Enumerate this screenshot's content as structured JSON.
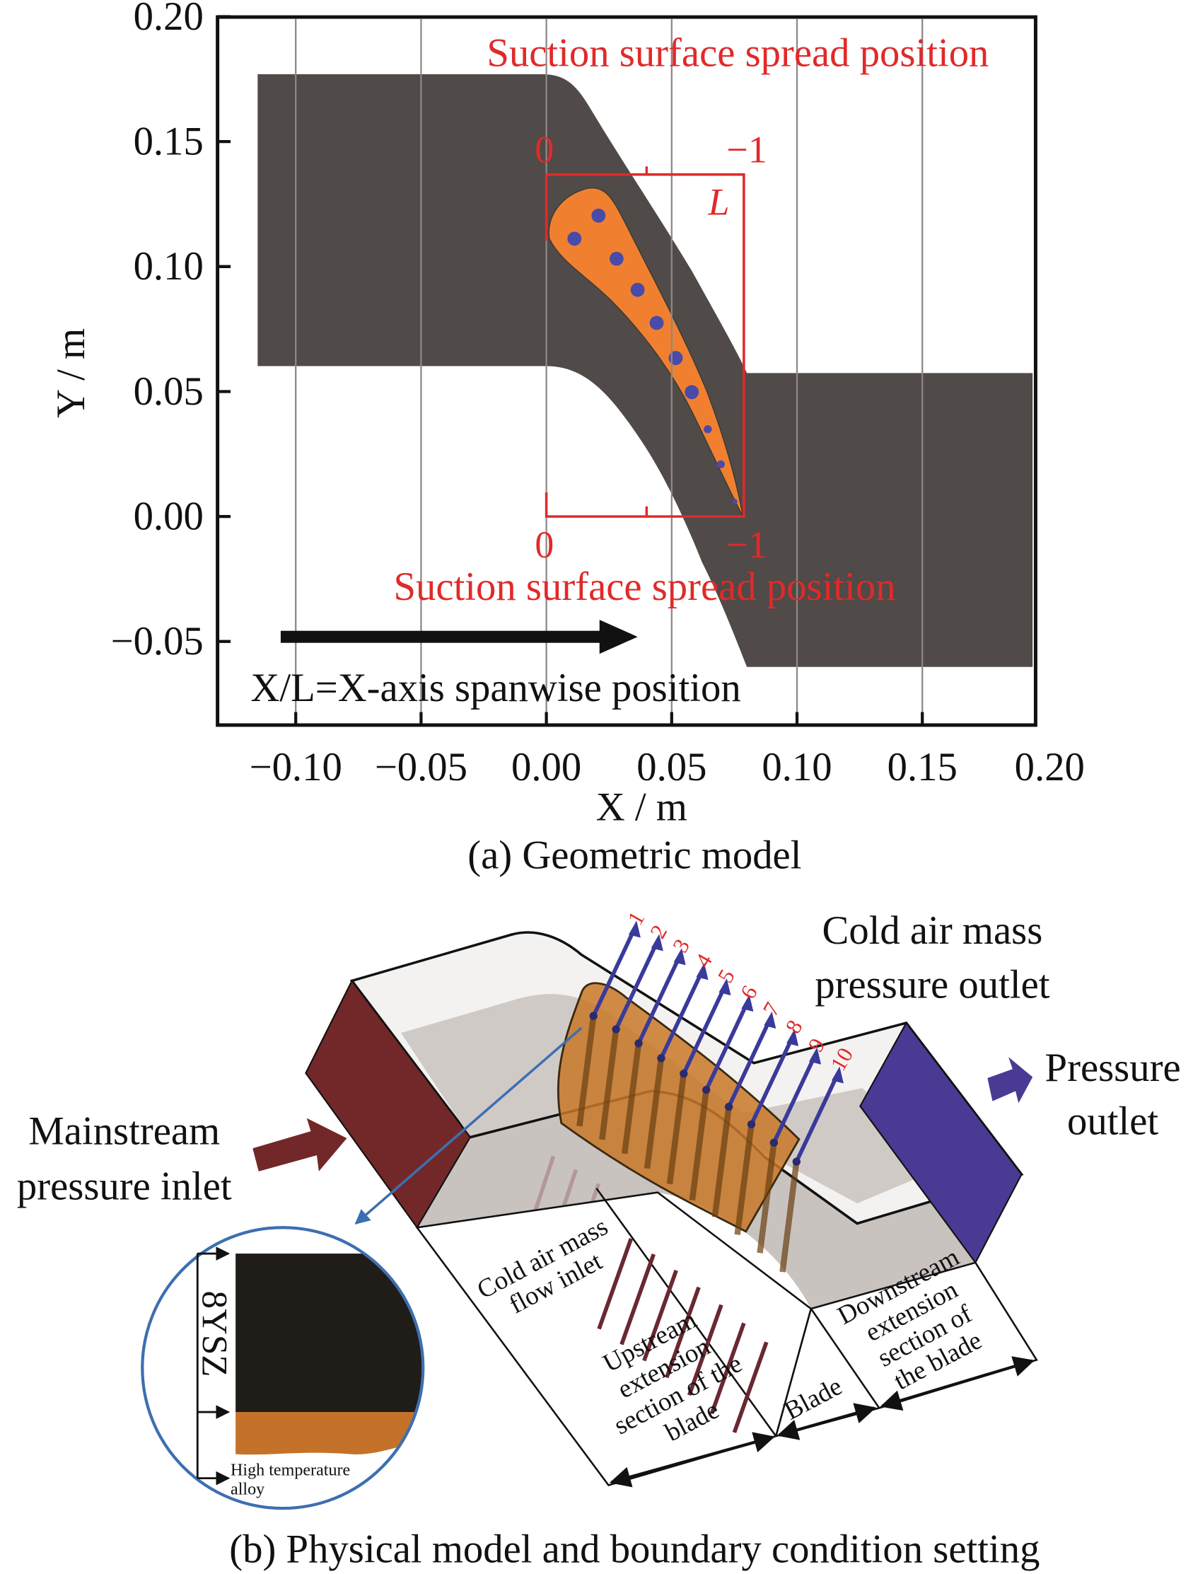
{
  "panel_a": {
    "caption": "(a) Geometric model",
    "x_axis_label": "X / m",
    "y_axis_label": "Y / m",
    "x_ticks": [
      {
        "value": -0.1,
        "label": "−0.10"
      },
      {
        "value": -0.05,
        "label": "−0.05"
      },
      {
        "value": 0.0,
        "label": "0.00"
      },
      {
        "value": 0.05,
        "label": "0.05"
      },
      {
        "value": 0.1,
        "label": "0.10"
      },
      {
        "value": 0.15,
        "label": "0.15"
      },
      {
        "value": 0.2,
        "label": "0.20"
      }
    ],
    "y_ticks": [
      {
        "value": 0.2,
        "label": "0.20"
      },
      {
        "value": 0.15,
        "label": "0.15"
      },
      {
        "value": 0.1,
        "label": "0.10"
      },
      {
        "value": 0.05,
        "label": "0.05"
      },
      {
        "value": 0.0,
        "label": "0.00"
      },
      {
        "value": -0.05,
        "label": "−0.05"
      }
    ],
    "top_annotation": "Suction surface spread position",
    "bottom_annotation": "Suction surface spread position",
    "top_scale_start": "0",
    "top_scale_end": "−1",
    "bottom_scale_start": "0",
    "bottom_scale_end": "−1",
    "length_label": "L",
    "spanwise_note": "X/L=X-axis spanwise position",
    "colors": {
      "domain": "#504a48",
      "blade": "#f08030",
      "holes": "#4a4aa8",
      "annotation": "#e02a2a"
    }
  },
  "panel_b": {
    "caption": "(b) Physical model and boundary condition setting",
    "inlet_label_1": "Mainstream",
    "inlet_label_2": "pressure inlet",
    "cold_outlet_label_1": "Cold air mass",
    "cold_outlet_label_2": "pressure outlet",
    "outlet_label_1": "Pressure",
    "outlet_label_2": "outlet",
    "hole_numbers": [
      "1",
      "2",
      "3",
      "4",
      "5",
      "6",
      "7",
      "8",
      "9",
      "10"
    ],
    "cold_inlet_label": [
      "Cold air mass",
      "flow inlet"
    ],
    "upstream_label": [
      "Upstream",
      "extension",
      "section of the",
      "blade"
    ],
    "blade_label": "Blade",
    "downstream_label": [
      "Downstream",
      "extension",
      "section of",
      "the blade"
    ],
    "coating_label": "8YSZ",
    "alloy_label": [
      "High temperature",
      "alloy"
    ],
    "colors": {
      "inlet": "#722828",
      "outlet": "#4a3a94",
      "blade": "#c87828",
      "arrows": "#3a3a9a"
    }
  }
}
